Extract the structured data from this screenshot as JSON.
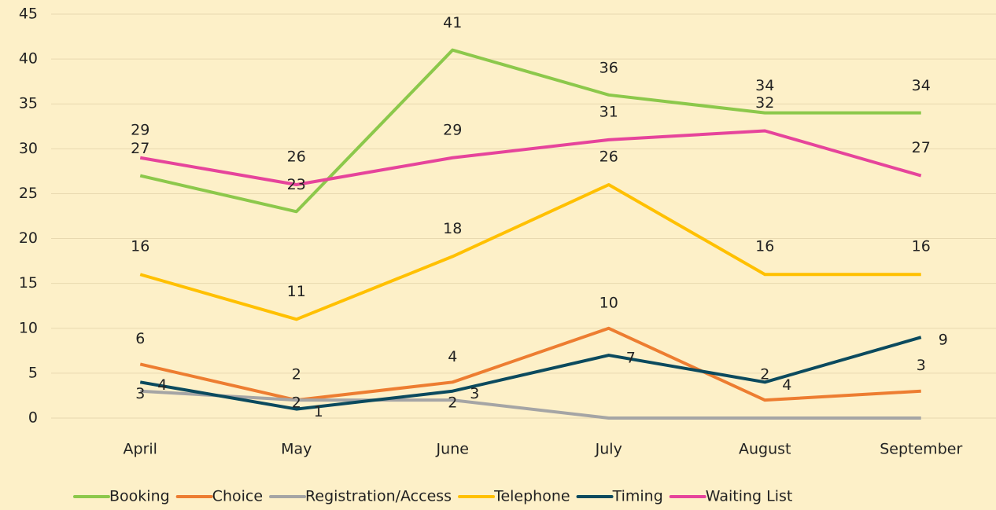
{
  "chart_data": {
    "type": "line",
    "categories": [
      "April",
      "May",
      "June",
      "July",
      "August",
      "September"
    ],
    "series": [
      {
        "name": "Booking",
        "color": "#8cc84b",
        "values": [
          27,
          23,
          41,
          36,
          34,
          34
        ]
      },
      {
        "name": "Choice",
        "color": "#ed7d31",
        "values": [
          6,
          2,
          4,
          10,
          2,
          3
        ]
      },
      {
        "name": "Registration/Access",
        "color": "#a5a5a5",
        "values": [
          3,
          2,
          2,
          0,
          0,
          0
        ]
      },
      {
        "name": "Telephone",
        "color": "#ffc000",
        "values": [
          16,
          11,
          18,
          26,
          16,
          16
        ]
      },
      {
        "name": "Timing",
        "color": "#0b4a5e",
        "values": [
          4,
          1,
          3,
          7,
          4,
          9
        ]
      },
      {
        "name": "Waiting List",
        "color": "#e6449b",
        "values": [
          29,
          26,
          29,
          31,
          32,
          27
        ]
      }
    ],
    "ylim": [
      0,
      45
    ],
    "yticks": [
      0,
      5,
      10,
      15,
      20,
      25,
      30,
      35,
      40,
      45
    ],
    "grid": true,
    "legend": "bottom"
  }
}
